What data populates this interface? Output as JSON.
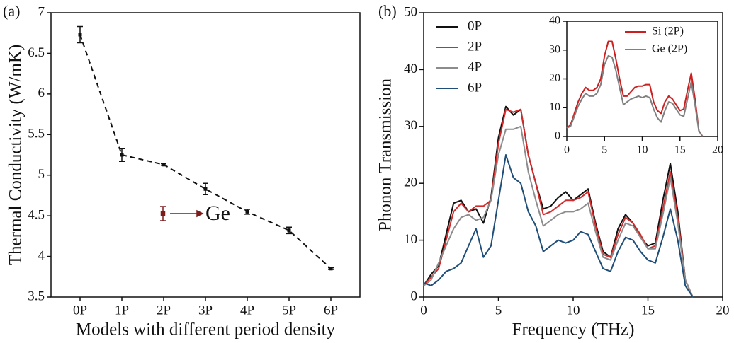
{
  "chart_data": [
    {
      "type": "errorbar",
      "label": "(a)",
      "xlabel": "Models with different period density",
      "ylabel": "Thermal Conductivity (W/mK)",
      "categories": [
        "0P",
        "1P",
        "2P",
        "3P",
        "4P",
        "5P",
        "6P"
      ],
      "values": [
        6.73,
        5.25,
        5.13,
        4.83,
        4.55,
        4.32,
        3.85
      ],
      "errors": [
        0.1,
        0.08,
        0.01,
        0.07,
        0.03,
        0.04,
        0.01
      ],
      "color": "#111111",
      "linestyle": "dashed",
      "ylim": [
        3.5,
        7
      ],
      "yticks": [
        3.5,
        4,
        4.5,
        5,
        5.5,
        6,
        6.5,
        7
      ],
      "annotation": {
        "text": "Ge",
        "color": "#7a1c1c"
      }
    },
    {
      "type": "line",
      "label": "(b)",
      "xlabel": "Frequency (THz)",
      "ylabel": "Phonon Transmission",
      "x": [
        0,
        0.5,
        1,
        1.5,
        2,
        2.5,
        3,
        3.5,
        4,
        4.5,
        5,
        5.5,
        6,
        6.5,
        7,
        7.5,
        8,
        8.5,
        9,
        9.5,
        10,
        10.5,
        11,
        11.5,
        12,
        12.5,
        13,
        13.5,
        14,
        14.5,
        15,
        15.5,
        16,
        16.5,
        17,
        17.5,
        18
      ],
      "series": [
        {
          "name": "0P",
          "color": "#111111",
          "values": [
            2,
            4,
            5.5,
            11,
            16.5,
            17,
            15,
            15.5,
            13,
            17.5,
            28,
            33.5,
            32,
            33,
            25,
            20,
            15.5,
            16,
            17.5,
            18.5,
            17,
            18,
            19,
            13,
            8,
            7,
            12,
            14.5,
            13,
            10.5,
            9,
            9.5,
            17,
            23.5,
            15,
            3,
            0
          ]
        },
        {
          "name": "2P",
          "color": "#d42a2a",
          "values": [
            2,
            3.5,
            5,
            10,
            15,
            16.5,
            15,
            16,
            16,
            17,
            27,
            33,
            32.5,
            33,
            25,
            20,
            14.5,
            15,
            16,
            17,
            17,
            17.5,
            18.5,
            12.5,
            7.5,
            7,
            11,
            14,
            13,
            11,
            8.5,
            9,
            15.5,
            22,
            14,
            3,
            0
          ]
        },
        {
          "name": "4P",
          "color": "#8c8c8c",
          "values": [
            2,
            3,
            6,
            9,
            12,
            14,
            14.5,
            13.5,
            14,
            17,
            25,
            29.5,
            29.5,
            30,
            22,
            17,
            12.5,
            13.5,
            14.5,
            15,
            15,
            15.5,
            16.5,
            11.5,
            7,
            6.5,
            10,
            13,
            12.5,
            10.5,
            8.5,
            8.5,
            14.5,
            21,
            13,
            3,
            0
          ]
        },
        {
          "name": "6P",
          "color": "#1f4e79",
          "values": [
            2.5,
            2,
            3,
            4.5,
            5,
            6,
            9,
            12,
            7,
            9,
            17,
            25,
            21,
            20,
            15,
            12.5,
            8,
            9,
            10,
            9.5,
            10,
            11.5,
            11,
            8,
            5,
            4.5,
            8,
            10.5,
            10,
            8,
            6.5,
            6,
            10.5,
            15.5,
            10,
            2,
            0
          ]
        }
      ],
      "xlim": [
        0,
        20
      ],
      "xticks": [
        0,
        5,
        10,
        15,
        20
      ],
      "ylim": [
        0,
        50
      ],
      "yticks": [
        0,
        10,
        20,
        30,
        40,
        50
      ],
      "legend": "upper left"
    },
    {
      "type": "line",
      "x": [
        0,
        0.5,
        1,
        1.5,
        2,
        2.5,
        3,
        3.5,
        4,
        4.5,
        5,
        5.5,
        6,
        6.5,
        7,
        7.5,
        8,
        8.5,
        9,
        9.5,
        10,
        10.5,
        11,
        11.5,
        12,
        12.5,
        13,
        13.5,
        14,
        14.5,
        15,
        15.5,
        16,
        16.5,
        17,
        17.5,
        18
      ],
      "series": [
        {
          "name": "Si (2P)",
          "color": "#cc1f1f",
          "values": [
            3,
            4,
            8,
            12,
            15,
            17,
            16,
            16,
            17,
            20,
            28,
            33,
            33,
            27,
            20,
            14,
            14,
            15.5,
            17,
            17.5,
            17.5,
            18,
            18,
            12,
            9,
            8,
            12,
            14,
            13,
            11,
            9,
            9.5,
            16,
            22,
            13,
            2,
            0
          ]
        },
        {
          "name": "Ge (2P)",
          "color": "#808080",
          "values": [
            3,
            3.5,
            7,
            10.5,
            13,
            15,
            14,
            14,
            15,
            18,
            25,
            28,
            27.5,
            23,
            17,
            11,
            12,
            13,
            13.5,
            14,
            13.5,
            14,
            13.5,
            9.5,
            6.5,
            5,
            9,
            12,
            11.5,
            9.5,
            7.5,
            7,
            13,
            19,
            11,
            2,
            0
          ]
        }
      ],
      "xlim": [
        0,
        20
      ],
      "xticks": [
        0,
        5,
        10,
        15,
        20
      ],
      "ylim": [
        0,
        40
      ],
      "yticks": [
        0,
        10,
        20,
        30,
        40
      ],
      "legend": "upper right"
    }
  ]
}
